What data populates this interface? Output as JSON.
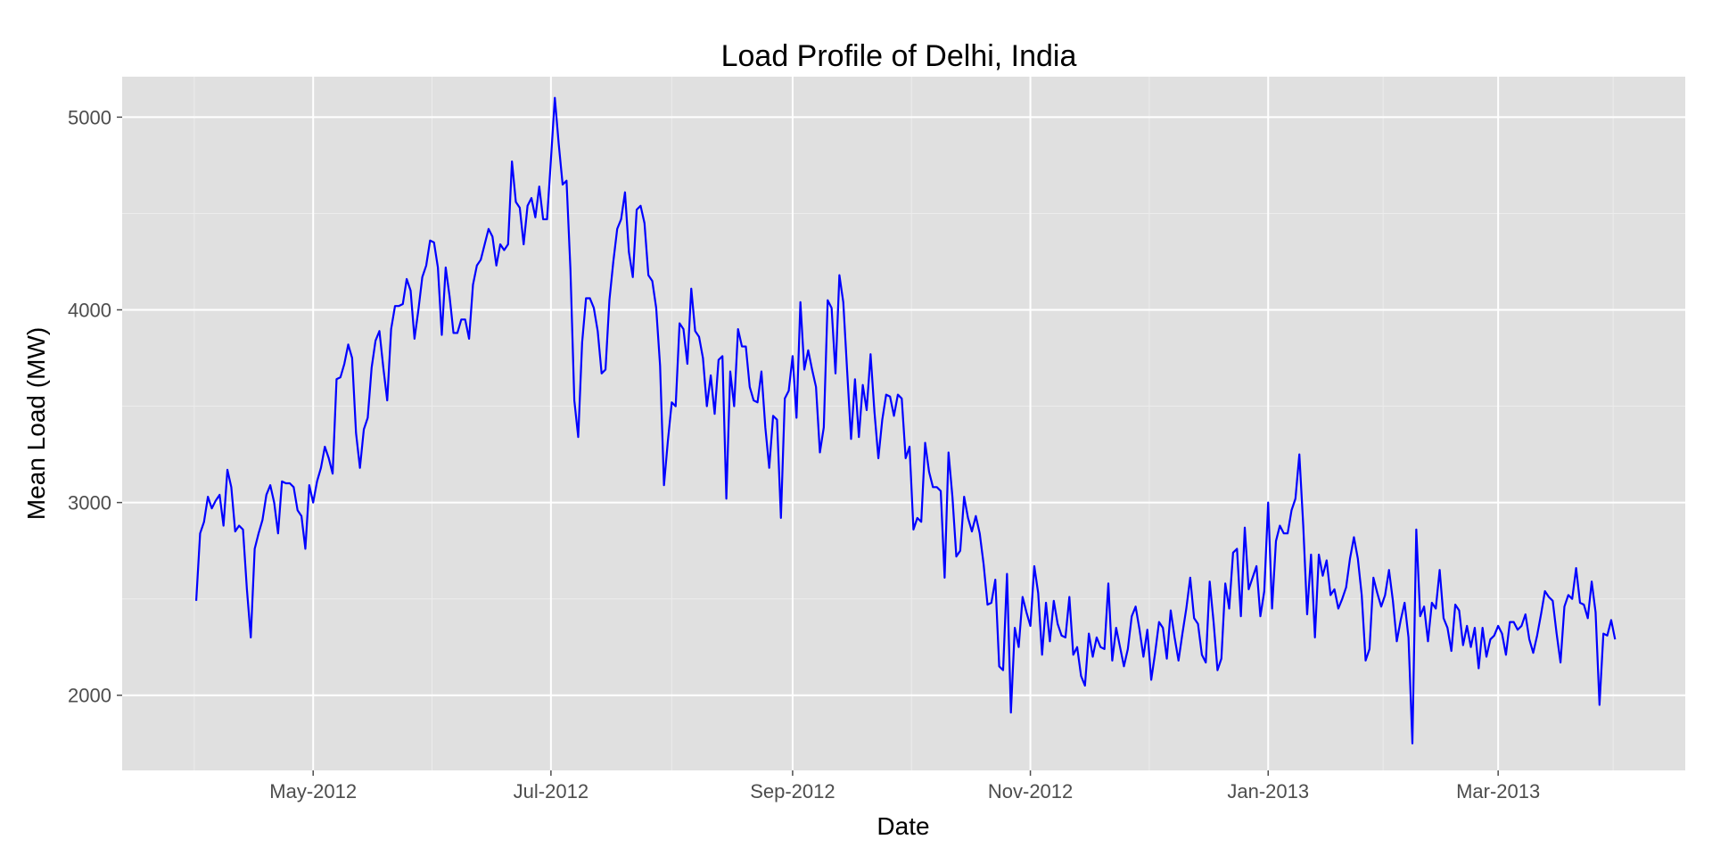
{
  "chart_data": {
    "type": "line",
    "title": "Load Profile of Delhi, India",
    "xlabel": "Date",
    "ylabel": "Mean Load (MW)",
    "ylim": [
      1610,
      5210
    ],
    "y_ticks": [
      2000,
      3000,
      4000,
      5000
    ],
    "x_ticks": [
      {
        "date": "2012-05-01",
        "label": "May-2012"
      },
      {
        "date": "2012-07-01",
        "label": "Jul-2012"
      },
      {
        "date": "2012-09-01",
        "label": "Sep-2012"
      },
      {
        "date": "2012-11-01",
        "label": "Nov-2012"
      },
      {
        "date": "2013-01-01",
        "label": "Jan-2013"
      },
      {
        "date": "2013-03-01",
        "label": "Mar-2013"
      }
    ],
    "x_range": [
      "2012-03-13",
      "2013-04-18"
    ],
    "grid": true,
    "legend": "none",
    "colors": {
      "series": "#0000ff",
      "panel": "#e0e0e0",
      "grid": "#ffffff"
    },
    "series": [
      {
        "start": "2012-04-01",
        "end": "2013-03-31",
        "values": [
          2490,
          2840,
          2900,
          3030,
          2970,
          3010,
          3040,
          2880,
          3170,
          3080,
          2850,
          2880,
          2860,
          2550,
          2300,
          2760,
          2840,
          2910,
          3040,
          3090,
          3000,
          2840,
          3110,
          3100,
          3100,
          3080,
          2960,
          2930,
          2760,
          3090,
          3000,
          3110,
          3180,
          3290,
          3230,
          3150,
          3640,
          3650,
          3720,
          3820,
          3750,
          3360,
          3180,
          3380,
          3440,
          3700,
          3840,
          3890,
          3700,
          3530,
          3900,
          4020,
          4020,
          4030,
          4160,
          4100,
          3850,
          4000,
          4170,
          4230,
          4360,
          4350,
          4220,
          3870,
          4220,
          4070,
          3880,
          3880,
          3950,
          3950,
          3850,
          4130,
          4230,
          4260,
          4340,
          4420,
          4380,
          4230,
          4340,
          4310,
          4340,
          4770,
          4560,
          4530,
          4340,
          4540,
          4580,
          4480,
          4640,
          4470,
          4470,
          4780,
          5100,
          4860,
          4650,
          4670,
          4210,
          3530,
          3340,
          3830,
          4060,
          4060,
          4010,
          3890,
          3670,
          3690,
          4050,
          4250,
          4420,
          4470,
          4610,
          4300,
          4170,
          4520,
          4540,
          4450,
          4180,
          4150,
          4010,
          3710,
          3090,
          3320,
          3520,
          3500,
          3930,
          3900,
          3720,
          4110,
          3890,
          3860,
          3750,
          3500,
          3660,
          3460,
          3740,
          3760,
          3020,
          3680,
          3500,
          3900,
          3810,
          3810,
          3600,
          3530,
          3520,
          3680,
          3390,
          3180,
          3450,
          3430,
          2920,
          3540,
          3580,
          3760,
          3440,
          4040,
          3690,
          3790,
          3690,
          3600,
          3260,
          3390,
          4050,
          4010,
          3670,
          4180,
          4040,
          3680,
          3330,
          3640,
          3340,
          3610,
          3480,
          3770,
          3470,
          3230,
          3430,
          3560,
          3550,
          3450,
          3560,
          3540,
          3230,
          3290,
          2860,
          2920,
          2900,
          3310,
          3160,
          3080,
          3080,
          3060,
          2610,
          3260,
          3030,
          2720,
          2750,
          3030,
          2920,
          2850,
          2930,
          2840,
          2680,
          2470,
          2480,
          2600,
          2150,
          2130,
          2630,
          1910,
          2350,
          2250,
          2510,
          2430,
          2360,
          2670,
          2530,
          2210,
          2480,
          2280,
          2490,
          2370,
          2310,
          2300,
          2510,
          2210,
          2250,
          2100,
          2050,
          2320,
          2200,
          2300,
          2250,
          2240,
          2580,
          2180,
          2350,
          2250,
          2150,
          2240,
          2410,
          2460,
          2340,
          2200,
          2340,
          2080,
          2220,
          2380,
          2350,
          2190,
          2440,
          2300,
          2180,
          2320,
          2450,
          2610,
          2400,
          2370,
          2210,
          2170,
          2590,
          2380,
          2130,
          2190,
          2580,
          2450,
          2740,
          2760,
          2410,
          2870,
          2550,
          2610,
          2670,
          2410,
          2540,
          3000,
          2450,
          2800,
          2880,
          2840,
          2840,
          2960,
          3020,
          3250,
          2880,
          2420,
          2730,
          2300,
          2730,
          2620,
          2700,
          2520,
          2550,
          2450,
          2500,
          2560,
          2710,
          2820,
          2710,
          2520,
          2180,
          2240,
          2610,
          2530,
          2460,
          2520,
          2650,
          2490,
          2280,
          2390,
          2480,
          2300,
          1750,
          2860,
          2410,
          2460,
          2280,
          2480,
          2450,
          2650,
          2400,
          2350,
          2230,
          2470,
          2440,
          2260,
          2360,
          2250,
          2350,
          2140,
          2350,
          2200,
          2290,
          2310,
          2360,
          2320,
          2210,
          2380,
          2380,
          2340,
          2360,
          2420,
          2290,
          2220,
          2310,
          2420,
          2540,
          2510,
          2490,
          2320,
          2170,
          2460,
          2520,
          2500,
          2660,
          2480,
          2470,
          2400,
          2590,
          2430,
          1950,
          2320,
          2310,
          2390,
          2290
        ]
      }
    ]
  }
}
